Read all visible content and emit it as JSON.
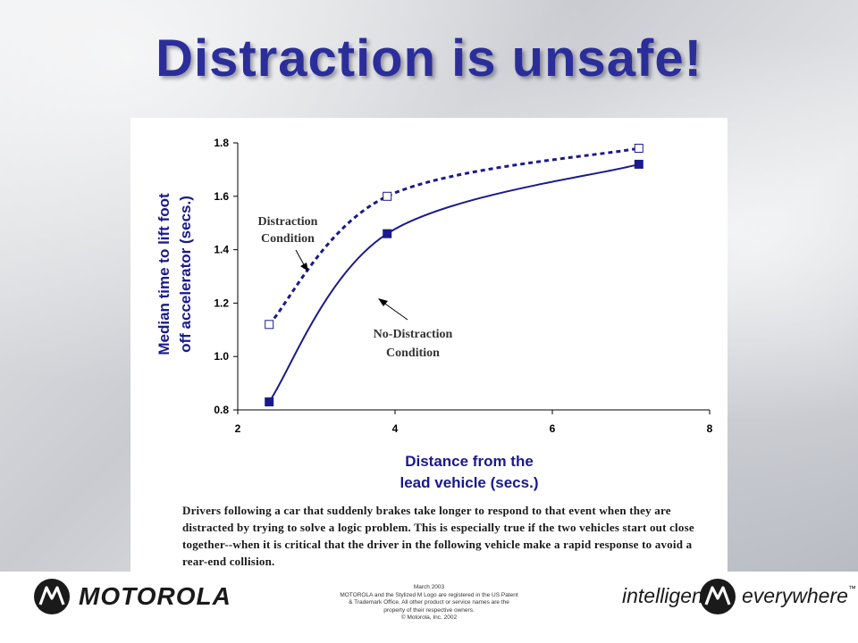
{
  "slide": {
    "title": "Distraction is unsafe!",
    "caption": "Drivers following a car that suddenly brakes take longer to respond to that event when they are distracted by trying to solve a logic problem. This is especially true if the two vehicles start out close together--when it is critical that the driver in the following vehicle make a rapid response to avoid a rear-end collision."
  },
  "footer": {
    "brand": "MOTOROLA",
    "legal_lines": [
      "March 2003",
      "MOTOROLA and the Stylized M Logo are registered in the US Patent",
      "& Trademark Office. All other product or service names are the",
      "property of their respective owners.",
      "© Motorola, Inc. 2002"
    ],
    "tagline_left": "intelligence",
    "tagline_right": "everywhere",
    "trademark": "™"
  },
  "colors": {
    "title": "#2b2e9a",
    "series": "#1a1a8c",
    "axis_title": "#1a1a8c"
  },
  "chart_data": {
    "type": "line",
    "xlabel_lines": [
      "Distance from the",
      "lead vehicle (secs.)"
    ],
    "ylabel_lines": [
      "Median time to lift foot",
      "off accelerator (secs.)"
    ],
    "xlim": [
      2,
      8
    ],
    "ylim": [
      0.8,
      1.8
    ],
    "x_ticks": [
      2,
      4,
      6,
      8
    ],
    "y_ticks": [
      "0.8",
      "1.0",
      "1.2",
      "1.4",
      "1.6",
      "1.8"
    ],
    "grid": false,
    "series": [
      {
        "name": "Distraction Condition",
        "style": "dashed",
        "marker": "open-square",
        "x": [
          2.4,
          3.9,
          7.1
        ],
        "y": [
          1.12,
          1.6,
          1.78
        ]
      },
      {
        "name": "No-Distraction Condition",
        "style": "solid",
        "marker": "filled-square",
        "x": [
          2.4,
          3.9,
          7.1
        ],
        "y": [
          0.83,
          1.46,
          1.72
        ]
      }
    ],
    "annotations": [
      {
        "lines": [
          "Distraction",
          "Condition"
        ],
        "series": 0
      },
      {
        "lines": [
          "No-Distraction",
          "Condition"
        ],
        "series": 1
      }
    ]
  }
}
